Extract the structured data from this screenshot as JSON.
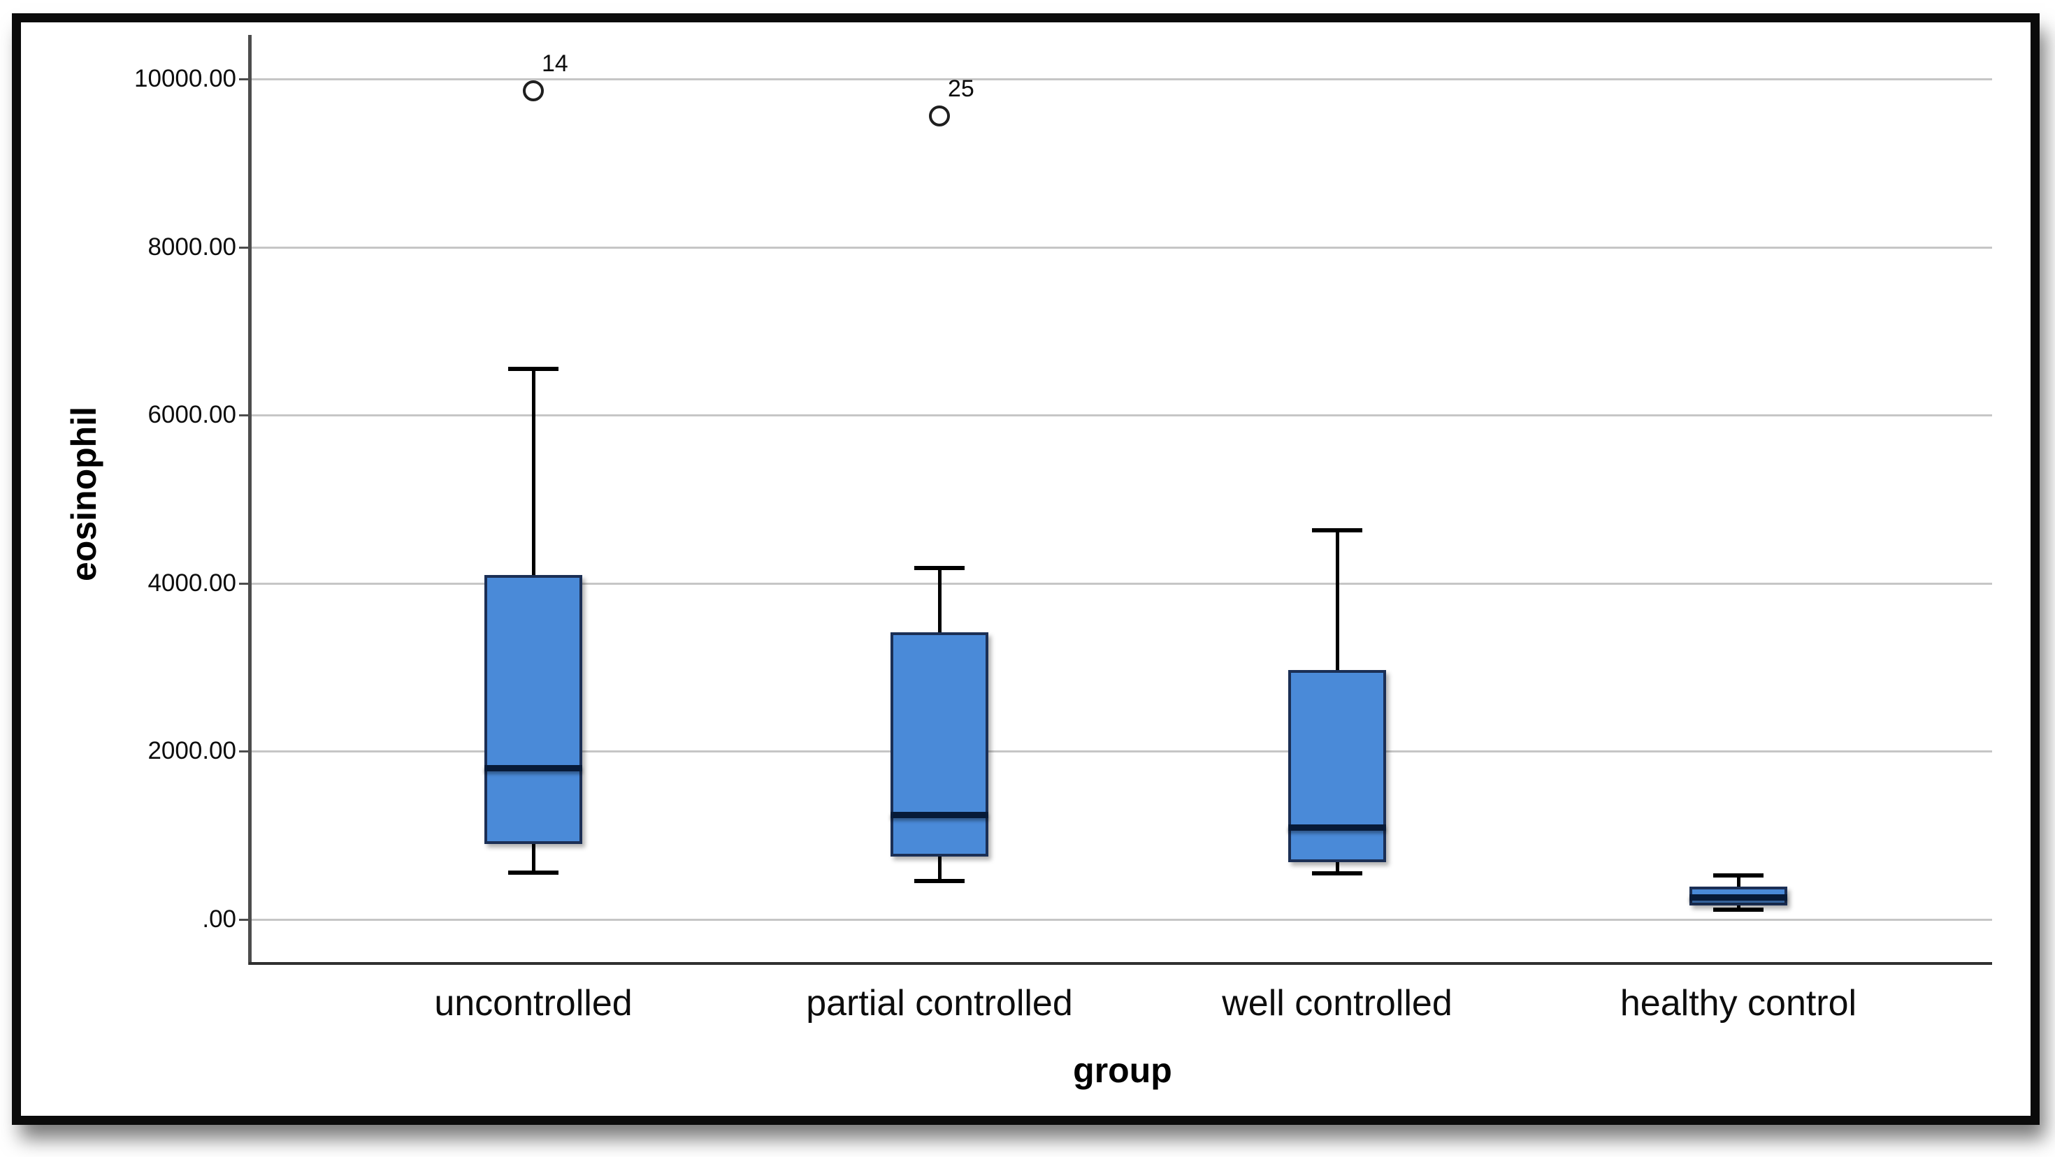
{
  "window": {
    "background": "#ffffff"
  },
  "frame": {
    "border_color": "#0b0b0b"
  },
  "chart_data": {
    "type": "boxplot",
    "title": "",
    "xlabel": "group",
    "ylabel": "eosinophil",
    "ylim": [
      0,
      10500
    ],
    "grid": "horizontal",
    "legend": null,
    "yticks": [
      {
        "label": "10000.00",
        "value": 10000
      },
      {
        "label": "8000.00",
        "value": 8000
      },
      {
        "label": "6000.00",
        "value": 6000
      },
      {
        "label": "4000.00",
        "value": 4000
      },
      {
        "label": "2000.00",
        "value": 2000
      },
      {
        "label": ".00",
        "value": 0
      }
    ],
    "categories": [
      "uncontrolled",
      "partial controlled",
      "well controlled",
      "healthy control"
    ],
    "series": [
      {
        "category": "uncontrolled",
        "whisker_low": 560,
        "q1": 900,
        "median": 1800,
        "q3": 4100,
        "whisker_high": 6550,
        "outliers": [
          {
            "label": "14",
            "value": 9860
          }
        ]
      },
      {
        "category": "partial controlled",
        "whisker_low": 460,
        "q1": 750,
        "median": 1250,
        "q3": 3420,
        "whisker_high": 4180,
        "outliers": [
          {
            "label": "25",
            "value": 9560
          }
        ]
      },
      {
        "category": "well controlled",
        "whisker_low": 550,
        "q1": 680,
        "median": 1100,
        "q3": 2970,
        "whisker_high": 4630,
        "outliers": []
      },
      {
        "category": "healthy control",
        "whisker_low": 120,
        "q1": 170,
        "median": 270,
        "q3": 390,
        "whisker_high": 520,
        "outliers": []
      }
    ],
    "colors": {
      "box_fill": "#4a8ad8",
      "box_border": "#1b2f55",
      "median": "#071a38",
      "whisker": "#000000",
      "gridline": "#c6c6c6",
      "axis": "#4d4d4d",
      "axis_bottom": "#303030",
      "outlier": "#1f1f1f",
      "text": "#0d0d0d"
    }
  }
}
